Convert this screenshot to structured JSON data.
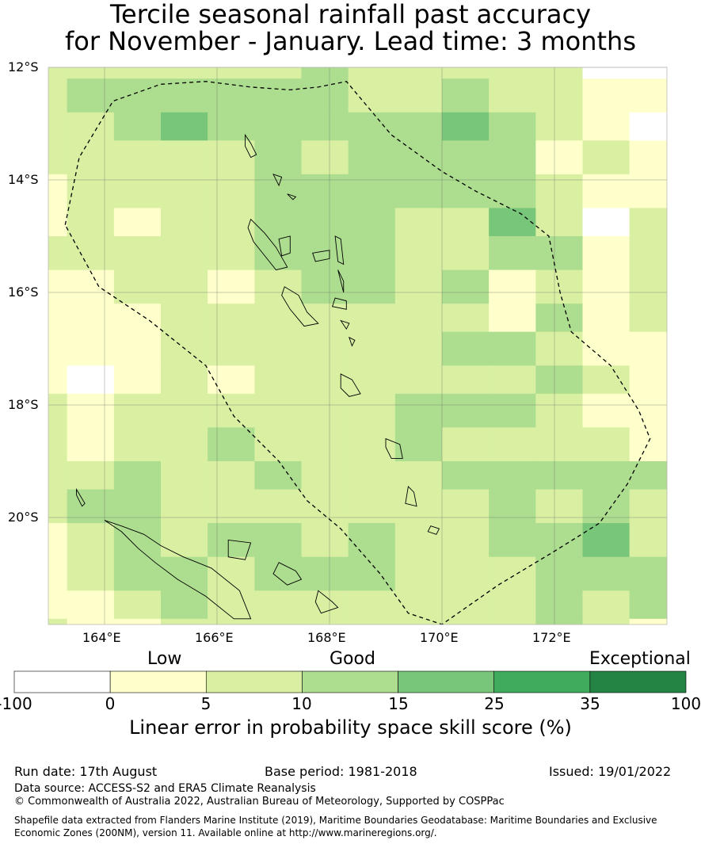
{
  "title": {
    "line1": "Tercile seasonal rainfall past accuracy",
    "line2": "for November - January. Lead time: 3 months"
  },
  "map": {
    "lat_labels": [
      "12°S",
      "14°S",
      "16°S",
      "18°S",
      "20°S"
    ],
    "lon_labels": [
      "164°E",
      "166°E",
      "168°E",
      "170°E",
      "172°E"
    ],
    "grid": {
      "col_edges_lon": [
        163,
        163.333,
        164.167,
        165,
        165.833,
        166.667,
        167.5,
        168.333,
        169.167,
        170,
        170.833,
        171.667,
        172.5,
        173.333,
        174
      ],
      "row_edges_lat": [
        -11,
        -12.2,
        -12.8,
        -13.3,
        -13.9,
        -14.5,
        -15.0,
        -15.6,
        -16.2,
        -16.7,
        -17.3,
        -17.8,
        -18.4,
        -19.0,
        -19.5,
        -20.1,
        -20.7,
        -21.3,
        -21.8,
        -22.3
      ],
      "cells": [
        [
          2,
          2,
          2,
          2,
          2,
          2,
          3,
          2,
          2,
          2,
          2,
          2,
          0,
          0
        ],
        [
          2,
          3,
          3,
          3,
          3,
          3,
          3,
          2,
          2,
          3,
          2,
          2,
          1,
          1
        ],
        [
          2,
          2,
          3,
          4,
          3,
          3,
          3,
          3,
          3,
          4,
          3,
          2,
          1,
          0
        ],
        [
          2,
          2,
          2,
          2,
          2,
          3,
          2,
          3,
          3,
          3,
          3,
          1,
          2,
          1
        ],
        [
          1,
          2,
          2,
          2,
          2,
          3,
          3,
          3,
          3,
          3,
          3,
          2,
          1,
          1
        ],
        [
          1,
          2,
          1,
          2,
          2,
          3,
          3,
          3,
          2,
          2,
          4,
          2,
          0,
          2
        ],
        [
          2,
          2,
          2,
          2,
          2,
          3,
          3,
          3,
          2,
          2,
          3,
          3,
          1,
          2
        ],
        [
          1,
          1,
          2,
          2,
          1,
          2,
          3,
          3,
          2,
          3,
          1,
          2,
          1,
          2
        ],
        [
          1,
          1,
          1,
          2,
          2,
          2,
          2,
          2,
          2,
          2,
          1,
          3,
          1,
          2
        ],
        [
          1,
          1,
          1,
          2,
          2,
          2,
          2,
          2,
          2,
          3,
          3,
          2,
          1,
          1
        ],
        [
          1,
          0,
          1,
          2,
          1,
          2,
          2,
          2,
          2,
          2,
          2,
          3,
          2,
          1
        ],
        [
          2,
          1,
          2,
          2,
          2,
          2,
          2,
          2,
          3,
          3,
          3,
          2,
          1,
          1
        ],
        [
          2,
          1,
          2,
          2,
          3,
          2,
          2,
          2,
          3,
          2,
          2,
          2,
          2,
          1
        ],
        [
          2,
          2,
          3,
          2,
          2,
          3,
          2,
          2,
          2,
          3,
          3,
          3,
          3,
          3
        ],
        [
          2,
          3,
          3,
          2,
          2,
          2,
          2,
          2,
          2,
          2,
          3,
          2,
          3,
          2
        ],
        [
          1,
          2,
          3,
          2,
          3,
          3,
          2,
          3,
          2,
          2,
          3,
          3,
          4,
          2
        ],
        [
          1,
          2,
          3,
          3,
          2,
          3,
          3,
          3,
          2,
          2,
          2,
          3,
          3,
          3
        ],
        [
          1,
          1,
          2,
          3,
          2,
          2,
          2,
          2,
          2,
          2,
          2,
          3,
          2,
          3
        ],
        [
          2,
          1,
          1,
          2,
          2,
          2,
          2,
          2,
          2,
          2,
          2,
          3,
          2,
          1
        ]
      ]
    },
    "eez_boundary": [
      [
        163.3,
        -14.8
      ],
      [
        163.55,
        -13.6
      ],
      [
        164.15,
        -12.6
      ],
      [
        165.0,
        -12.3
      ],
      [
        165.8,
        -12.25
      ],
      [
        166.6,
        -12.35
      ],
      [
        167.3,
        -12.4
      ],
      [
        167.8,
        -12.35
      ],
      [
        168.3,
        -12.25
      ],
      [
        169.1,
        -13.2
      ],
      [
        170.0,
        -13.85
      ],
      [
        170.6,
        -14.2
      ],
      [
        171.4,
        -14.6
      ],
      [
        171.9,
        -15.0
      ],
      [
        172.1,
        -16.0
      ],
      [
        172.3,
        -16.7
      ],
      [
        173.0,
        -17.3
      ],
      [
        173.5,
        -18.1
      ],
      [
        173.7,
        -18.6
      ],
      [
        173.3,
        -19.4
      ],
      [
        172.8,
        -20.1
      ],
      [
        172.0,
        -20.6
      ],
      [
        171.0,
        -21.2
      ],
      [
        170.0,
        -21.9
      ],
      [
        169.4,
        -21.7
      ],
      [
        168.9,
        -21.0
      ],
      [
        168.2,
        -20.2
      ],
      [
        167.6,
        -19.7
      ],
      [
        167.1,
        -19.0
      ],
      [
        166.3,
        -18.2
      ],
      [
        165.8,
        -17.3
      ],
      [
        164.8,
        -16.5
      ],
      [
        163.9,
        -15.9
      ],
      [
        163.3,
        -14.8
      ]
    ],
    "islands": [
      [
        [
          166.6,
          -14.7
        ],
        [
          166.85,
          -14.95
        ],
        [
          167.05,
          -15.2
        ],
        [
          167.25,
          -15.55
        ],
        [
          167.05,
          -15.6
        ],
        [
          166.85,
          -15.35
        ],
        [
          166.65,
          -15.1
        ],
        [
          166.55,
          -14.85
        ]
      ],
      [
        [
          167.1,
          -15.05
        ],
        [
          167.3,
          -15.0
        ],
        [
          167.3,
          -15.3
        ],
        [
          167.15,
          -15.35
        ]
      ],
      [
        [
          167.7,
          -15.3
        ],
        [
          168.0,
          -15.25
        ],
        [
          168.0,
          -15.4
        ],
        [
          167.75,
          -15.45
        ]
      ],
      [
        [
          168.1,
          -15.0
        ],
        [
          168.2,
          -15.05
        ],
        [
          168.25,
          -15.5
        ],
        [
          168.15,
          -15.45
        ]
      ],
      [
        [
          168.15,
          -15.6
        ],
        [
          168.25,
          -15.8
        ],
        [
          168.25,
          -16.0
        ],
        [
          168.2,
          -15.8
        ]
      ],
      [
        [
          167.2,
          -15.9
        ],
        [
          167.45,
          -16.05
        ],
        [
          167.6,
          -16.35
        ],
        [
          167.8,
          -16.55
        ],
        [
          167.55,
          -16.6
        ],
        [
          167.3,
          -16.3
        ],
        [
          167.15,
          -16.05
        ]
      ],
      [
        [
          168.1,
          -16.1
        ],
        [
          168.3,
          -16.15
        ],
        [
          168.3,
          -16.3
        ],
        [
          168.05,
          -16.25
        ]
      ],
      [
        [
          168.2,
          -16.5
        ],
        [
          168.35,
          -16.55
        ],
        [
          168.3,
          -16.65
        ]
      ],
      [
        [
          168.35,
          -16.8
        ],
        [
          168.45,
          -16.85
        ],
        [
          168.4,
          -16.95
        ]
      ],
      [
        [
          168.2,
          -17.45
        ],
        [
          168.4,
          -17.55
        ],
        [
          168.55,
          -17.8
        ],
        [
          168.35,
          -17.85
        ],
        [
          168.2,
          -17.7
        ]
      ],
      [
        [
          169.0,
          -18.6
        ],
        [
          169.25,
          -18.7
        ],
        [
          169.3,
          -18.95
        ],
        [
          169.1,
          -18.95
        ],
        [
          169.0,
          -18.75
        ]
      ],
      [
        [
          169.4,
          -19.45
        ],
        [
          169.5,
          -19.55
        ],
        [
          169.55,
          -19.8
        ],
        [
          169.35,
          -19.75
        ]
      ],
      [
        [
          169.8,
          -20.15
        ],
        [
          169.95,
          -20.2
        ],
        [
          169.9,
          -20.3
        ],
        [
          169.75,
          -20.25
        ]
      ],
      [
        [
          167.0,
          -13.9
        ],
        [
          167.15,
          -13.95
        ],
        [
          167.1,
          -14.1
        ]
      ],
      [
        [
          167.25,
          -14.25
        ],
        [
          167.4,
          -14.3
        ],
        [
          167.35,
          -14.35
        ]
      ],
      [
        [
          166.5,
          -13.2
        ],
        [
          166.6,
          -13.35
        ],
        [
          166.7,
          -13.55
        ],
        [
          166.6,
          -13.6
        ],
        [
          166.5,
          -13.4
        ]
      ],
      [
        [
          165.4,
          -20.7
        ],
        [
          165.9,
          -20.9
        ],
        [
          166.4,
          -21.3
        ],
        [
          166.6,
          -21.8
        ],
        [
          166.3,
          -21.8
        ],
        [
          165.8,
          -21.4
        ],
        [
          165.3,
          -21.1
        ],
        [
          164.9,
          -20.8
        ],
        [
          164.6,
          -20.55
        ],
        [
          164.3,
          -20.25
        ],
        [
          164.0,
          -20.05
        ],
        [
          164.3,
          -20.15
        ],
        [
          164.7,
          -20.3
        ],
        [
          165.0,
          -20.5
        ]
      ],
      [
        [
          166.2,
          -20.4
        ],
        [
          166.6,
          -20.45
        ],
        [
          166.5,
          -20.75
        ],
        [
          166.2,
          -20.7
        ]
      ],
      [
        [
          167.1,
          -20.8
        ],
        [
          167.4,
          -20.95
        ],
        [
          167.5,
          -21.1
        ],
        [
          167.25,
          -21.2
        ],
        [
          167.0,
          -21.0
        ]
      ],
      [
        [
          167.8,
          -21.3
        ],
        [
          168.05,
          -21.5
        ],
        [
          168.15,
          -21.6
        ],
        [
          167.85,
          -21.7
        ],
        [
          167.75,
          -21.5
        ]
      ],
      [
        [
          163.5,
          -19.5
        ],
        [
          163.65,
          -19.75
        ],
        [
          163.6,
          -19.8
        ],
        [
          163.5,
          -19.6
        ]
      ]
    ]
  },
  "colorbar": {
    "category_labels": [
      "Low",
      "Good",
      "Exceptional"
    ],
    "tick_labels": [
      "-100",
      "0",
      "5",
      "10",
      "15",
      "25",
      "35",
      "100"
    ],
    "colors": [
      "#ffffff",
      "#ffffcc",
      "#d9f0a3",
      "#addd8e",
      "#78c679",
      "#41ab5d",
      "#238443"
    ],
    "label": "Linear error in probability space skill score (%)"
  },
  "footer": {
    "run_date": "Run date: 17th August",
    "base_period": "Base period: 1981-2018",
    "issued": "Issued: 19/01/2022",
    "data_source": "Data source: ACCESS-S2 and ERA5 Climate Reanalysis",
    "copyright": "© Commonwealth of Australia 2022, Australian Bureau of Meteorology, Supported by COSPPac",
    "shapefile_line1": "Shapefile data extracted from Flanders Marine Institute (2019), Maritime Boundaries Geodatabase: Maritime Boundaries and Exclusive",
    "shapefile_line2": "Economic Zones (200NM), version 11. Available online at http://www.marineregions.org/."
  }
}
